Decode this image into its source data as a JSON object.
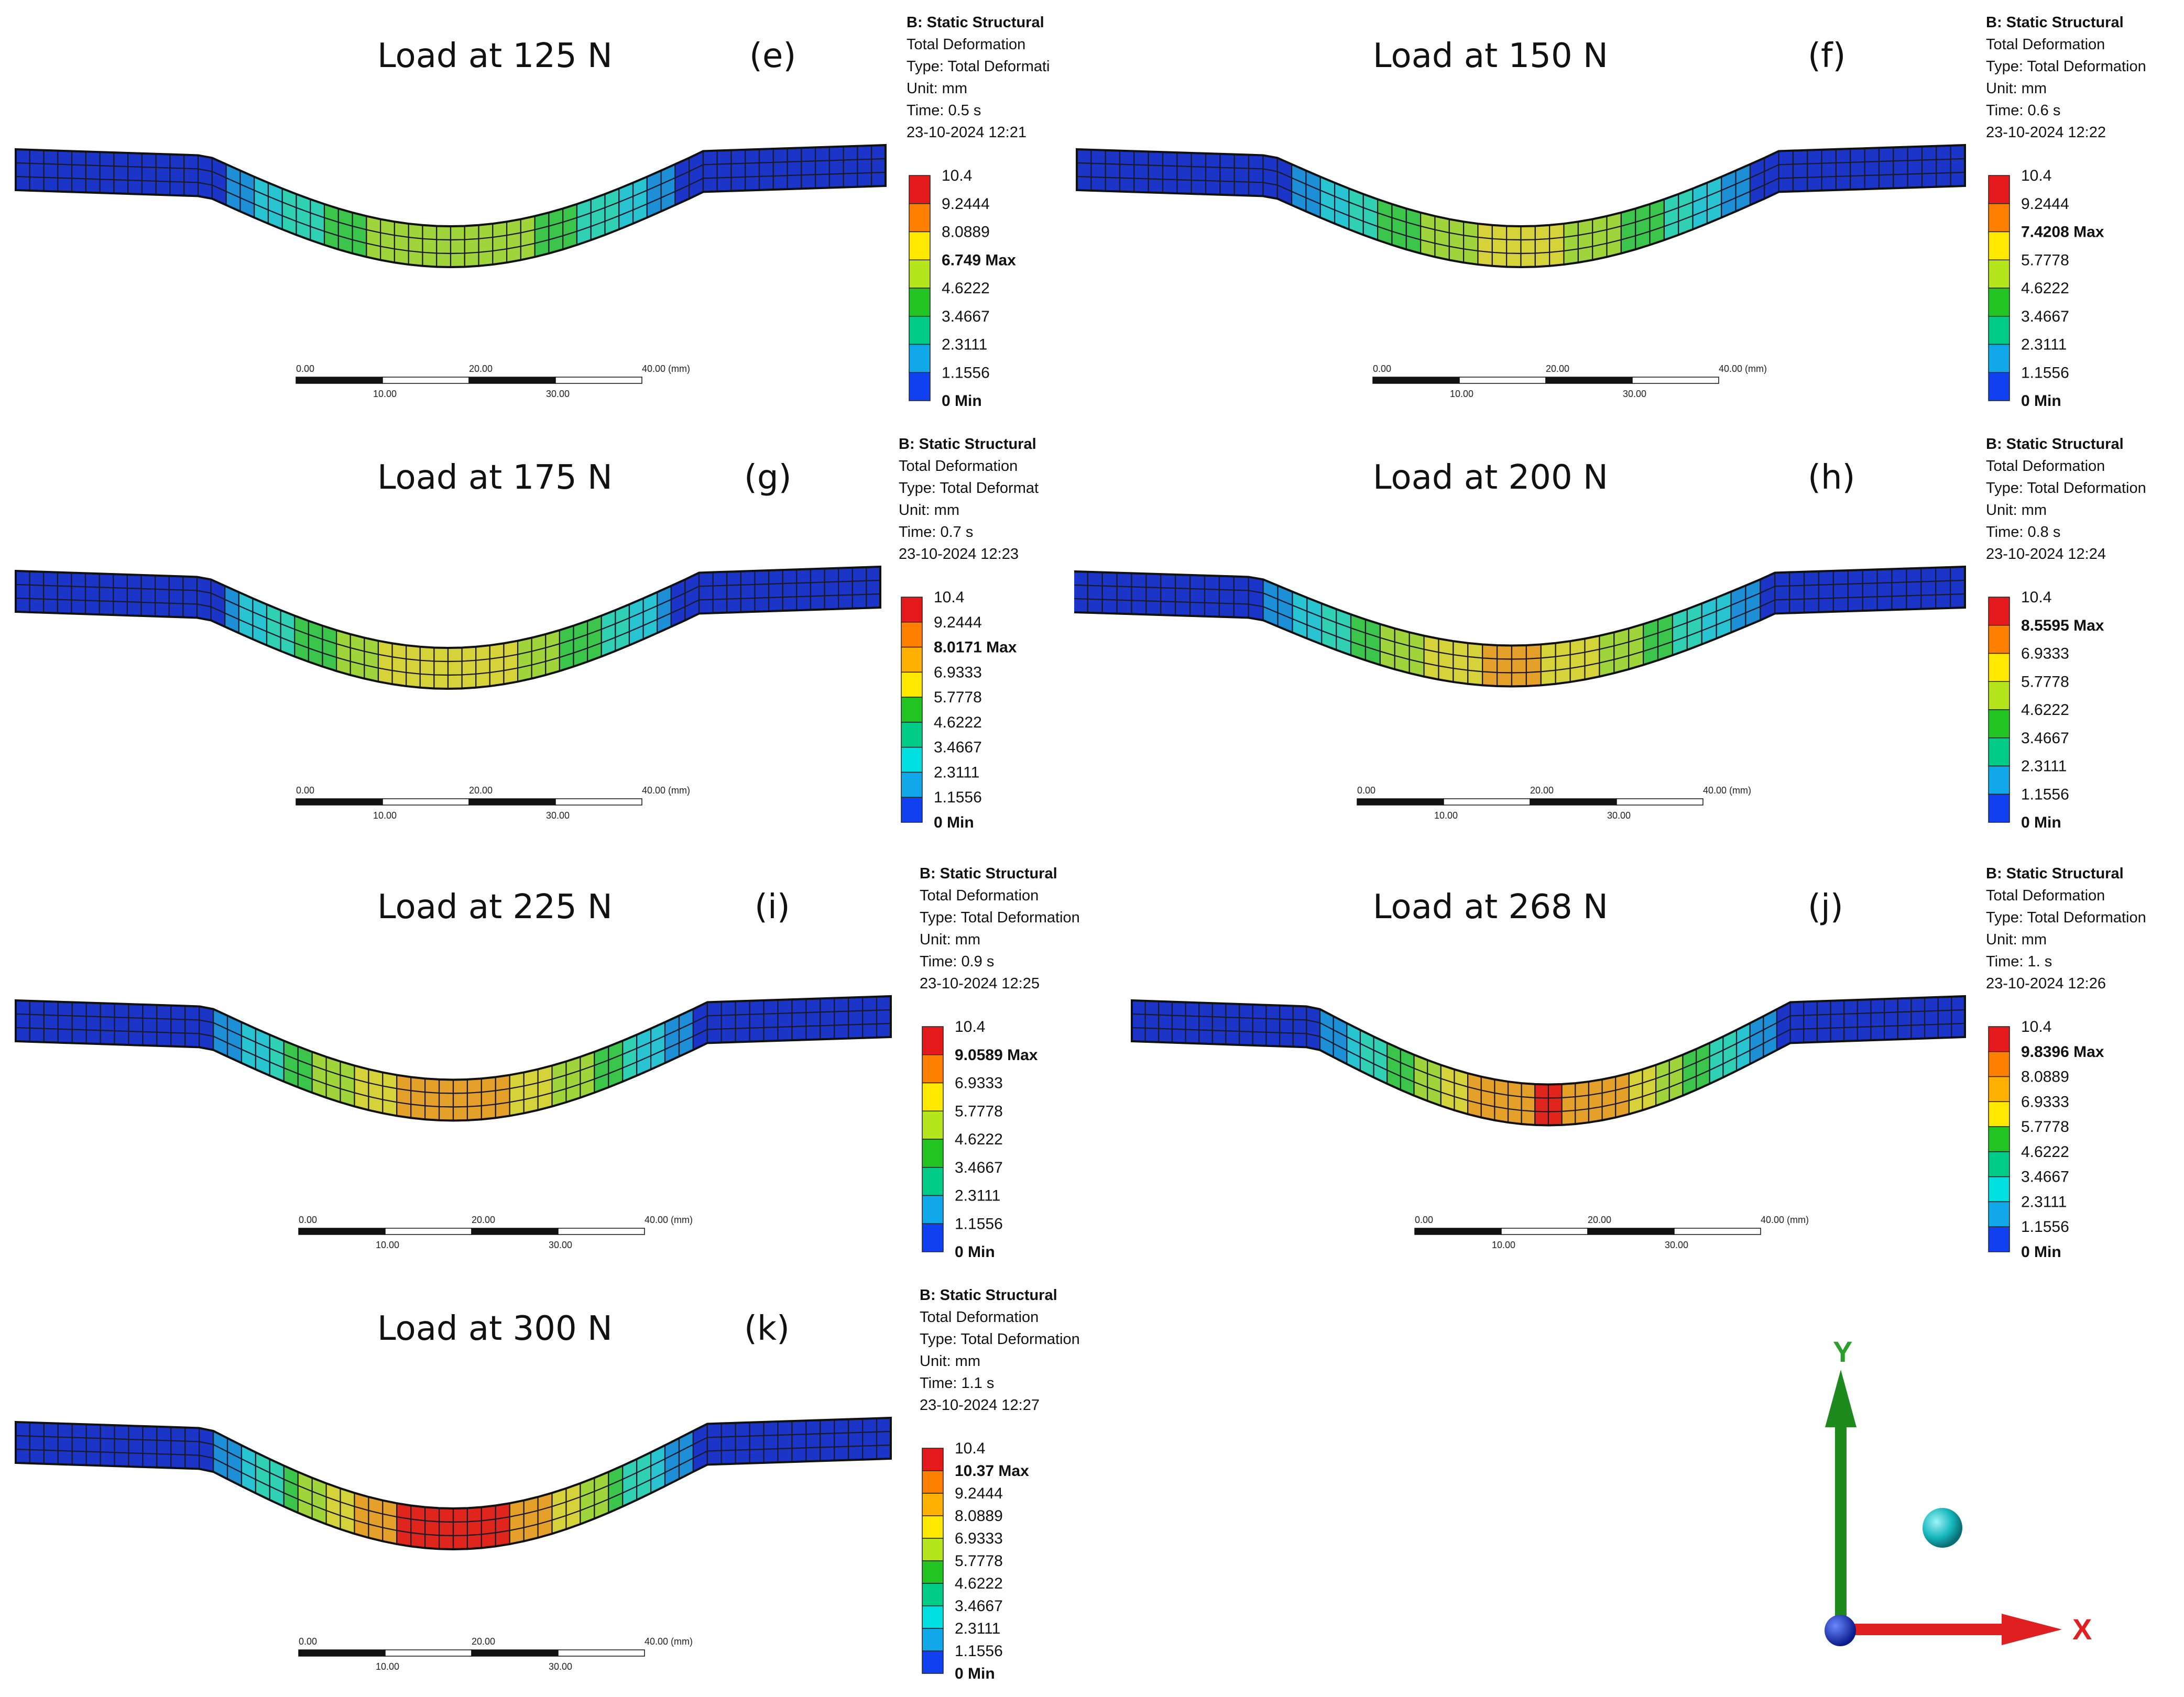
{
  "colorbar_colors": [
    "#e41a1c",
    "#ff7f00",
    "#ffb000",
    "#ffe800",
    "#b5e61d",
    "#22c422",
    "#00cc88",
    "#00e0e0",
    "#10a8e8",
    "#1040f0"
  ],
  "mesh_colors": {
    "band_deep_blue": "#1a35c8",
    "band_teal_blue": "#1c8fd6",
    "band_cyan": "#29c4d1",
    "band_aqua": "#2fd0b4",
    "band_green": "#3bc54a",
    "band_yellow_green": "#9fd43a",
    "band_yellow": "#d6d23a",
    "band_orange": "#e5a02a",
    "band_red": "#e0261c"
  },
  "panels": [
    {
      "id": "e",
      "title": "Load at 125 N",
      "letter": "(e)",
      "info": {
        "head": "B: Static Structural",
        "line1": "Total Deformation",
        "line2": "Type: Total Deformati",
        "line3": "Unit: mm",
        "line4": "Time: 0.5 s",
        "line5": "23-10-2024 12:21"
      },
      "legend": [
        {
          "label": "10.4",
          "bold": false
        },
        {
          "label": "9.2444",
          "bold": false
        },
        {
          "label": "8.0889",
          "bold": false
        },
        {
          "label": "6.749 Max",
          "bold": true
        },
        {
          "label": "4.6222",
          "bold": false
        },
        {
          "label": "3.4667",
          "bold": false
        },
        {
          "label": "2.3111",
          "bold": false
        },
        {
          "label": "1.1556",
          "bold": false
        },
        {
          "label": "0 Min",
          "bold": true
        }
      ],
      "scale": {
        "labels_top": [
          "0.00",
          "20.00",
          "40.00 (mm)"
        ],
        "labels_bottom": [
          "10.00",
          "30.00"
        ]
      },
      "max_fraction": 0.649
    },
    {
      "id": "f",
      "title": "Load at 150 N",
      "letter": "(f)",
      "info": {
        "head": "B: Static Structural",
        "line1": "Total Deformation",
        "line2": "Type: Total Deformation",
        "line3": "Unit: mm",
        "line4": "Time: 0.6 s",
        "line5": "23-10-2024 12:22"
      },
      "legend": [
        {
          "label": "10.4",
          "bold": false
        },
        {
          "label": "9.2444",
          "bold": false
        },
        {
          "label": "7.4208 Max",
          "bold": true
        },
        {
          "label": "5.7778",
          "bold": false
        },
        {
          "label": "4.6222",
          "bold": false
        },
        {
          "label": "3.4667",
          "bold": false
        },
        {
          "label": "2.3111",
          "bold": false
        },
        {
          "label": "1.1556",
          "bold": false
        },
        {
          "label": "0 Min",
          "bold": true
        }
      ],
      "scale": {
        "labels_top": [
          "0.00",
          "20.00",
          "40.00 (mm)"
        ],
        "labels_bottom": [
          "10.00",
          "30.00"
        ]
      },
      "max_fraction": 0.714
    },
    {
      "id": "g",
      "title": "Load at 175 N",
      "letter": "(g)",
      "info": {
        "head": "B: Static Structural",
        "line1": "Total Deformation",
        "line2": "Type: Total Deformat",
        "line3": "Unit: mm",
        "line4": "Time: 0.7 s",
        "line5": "23-10-2024 12:23"
      },
      "legend": [
        {
          "label": "10.4",
          "bold": false
        },
        {
          "label": "9.2444",
          "bold": false
        },
        {
          "label": "8.0171 Max",
          "bold": true
        },
        {
          "label": "6.9333",
          "bold": false
        },
        {
          "label": "5.7778",
          "bold": false
        },
        {
          "label": "4.6222",
          "bold": false
        },
        {
          "label": "3.4667",
          "bold": false
        },
        {
          "label": "2.3111",
          "bold": false
        },
        {
          "label": "1.1556",
          "bold": false
        },
        {
          "label": "0 Min",
          "bold": true
        }
      ],
      "scale": {
        "labels_top": [
          "0.00",
          "20.00",
          "40.00 (mm)"
        ],
        "labels_bottom": [
          "10.00",
          "30.00"
        ]
      },
      "max_fraction": 0.771
    },
    {
      "id": "h",
      "title": "Load at 200 N",
      "letter": "(h)",
      "info": {
        "head": "B: Static Structural",
        "line1": "Total Deformation",
        "line2": "Type: Total Deformation",
        "line3": "Unit: mm",
        "line4": "Time: 0.8 s",
        "line5": "23-10-2024 12:24"
      },
      "legend": [
        {
          "label": "10.4",
          "bold": false
        },
        {
          "label": "8.5595 Max",
          "bold": true
        },
        {
          "label": "6.9333",
          "bold": false
        },
        {
          "label": "5.7778",
          "bold": false
        },
        {
          "label": "4.6222",
          "bold": false
        },
        {
          "label": "3.4667",
          "bold": false
        },
        {
          "label": "2.3111",
          "bold": false
        },
        {
          "label": "1.1556",
          "bold": false
        },
        {
          "label": "0 Min",
          "bold": true
        }
      ],
      "scale": {
        "labels_top": [
          "0.00",
          "20.00",
          "40.00 (mm)"
        ],
        "labels_bottom": [
          "10.00",
          "30.00"
        ]
      },
      "max_fraction": 0.823
    },
    {
      "id": "i",
      "title": "Load at 225 N",
      "letter": "(i)",
      "info": {
        "head": "B: Static Structural",
        "line1": "Total Deformation",
        "line2": "Type: Total Deformation",
        "line3": "Unit: mm",
        "line4": "Time: 0.9 s",
        "line5": "23-10-2024 12:25"
      },
      "legend": [
        {
          "label": "10.4",
          "bold": false
        },
        {
          "label": "9.0589 Max",
          "bold": true
        },
        {
          "label": "6.9333",
          "bold": false
        },
        {
          "label": "5.7778",
          "bold": false
        },
        {
          "label": "4.6222",
          "bold": false
        },
        {
          "label": "3.4667",
          "bold": false
        },
        {
          "label": "2.3111",
          "bold": false
        },
        {
          "label": "1.1556",
          "bold": false
        },
        {
          "label": "0 Min",
          "bold": true
        }
      ],
      "scale": {
        "labels_top": [
          "0.00",
          "20.00",
          "40.00 (mm)"
        ],
        "labels_bottom": [
          "10.00",
          "30.00"
        ]
      },
      "max_fraction": 0.871
    },
    {
      "id": "j",
      "title": "Load at 268 N",
      "letter": "(j)",
      "info": {
        "head": "B: Static Structural",
        "line1": "Total Deformation",
        "line2": "Type: Total Deformation",
        "line3": "Unit: mm",
        "line4": "Time: 1. s",
        "line5": "23-10-2024 12:26"
      },
      "legend": [
        {
          "label": "10.4",
          "bold": false
        },
        {
          "label": "9.8396 Max",
          "bold": true
        },
        {
          "label": "8.0889",
          "bold": false
        },
        {
          "label": "6.9333",
          "bold": false
        },
        {
          "label": "5.7778",
          "bold": false
        },
        {
          "label": "4.6222",
          "bold": false
        },
        {
          "label": "3.4667",
          "bold": false
        },
        {
          "label": "2.3111",
          "bold": false
        },
        {
          "label": "1.1556",
          "bold": false
        },
        {
          "label": "0 Min",
          "bold": true
        }
      ],
      "scale": {
        "labels_top": [
          "0.00",
          "20.00",
          "40.00 (mm)"
        ],
        "labels_bottom": [
          "10.00",
          "30.00"
        ]
      },
      "max_fraction": 0.946
    },
    {
      "id": "k",
      "title": "Load at 300 N",
      "letter": "(k)",
      "info": {
        "head": "B: Static Structural",
        "line1": "Total Deformation",
        "line2": "Type: Total Deformation",
        "line3": "Unit: mm",
        "line4": "Time: 1.1 s",
        "line5": "23-10-2024 12:27"
      },
      "legend": [
        {
          "label": "10.4",
          "bold": false
        },
        {
          "label": "10.37 Max",
          "bold": true
        },
        {
          "label": "9.2444",
          "bold": false
        },
        {
          "label": "8.0889",
          "bold": false
        },
        {
          "label": "6.9333",
          "bold": false
        },
        {
          "label": "5.7778",
          "bold": false
        },
        {
          "label": "4.6222",
          "bold": false
        },
        {
          "label": "3.4667",
          "bold": false
        },
        {
          "label": "2.3111",
          "bold": false
        },
        {
          "label": "1.1556",
          "bold": false
        },
        {
          "label": "0 Min",
          "bold": true
        }
      ],
      "scale": {
        "labels_top": [
          "0.00",
          "20.00",
          "40.00 (mm)"
        ],
        "labels_bottom": [
          "10.00",
          "30.00"
        ]
      },
      "max_fraction": 0.997
    }
  ],
  "triad": {
    "y_label": "Y",
    "x_label": "X",
    "y_color": "#1e8a1e",
    "x_color": "#e02020",
    "origin_color": "#1a2fd0",
    "sphere_color": "#18b8c0"
  }
}
